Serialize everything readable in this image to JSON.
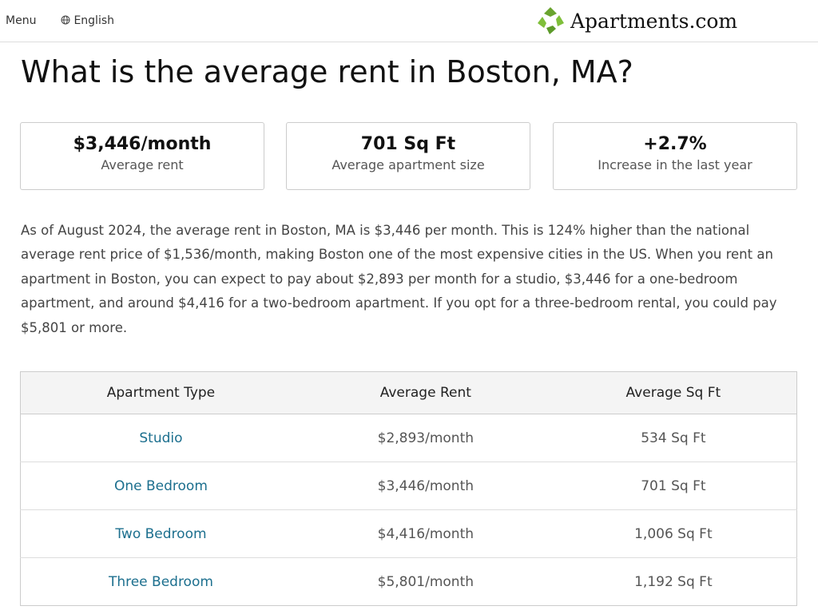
{
  "header": {
    "menu": "Menu",
    "language": "English",
    "logo": "Apartments.com"
  },
  "title": "What is the average rent in Boston, MA?",
  "stats": [
    {
      "value": "$3,446/month",
      "label": "Average rent"
    },
    {
      "value": "701 Sq Ft",
      "label": "Average apartment size"
    },
    {
      "value": "+2.7%",
      "label": "Increase in the last year"
    }
  ],
  "description": "As of August 2024, the average rent in Boston, MA is $3,446 per month. This is 124% higher than the national average rent price of $1,536/month, making Boston one of the most expensive cities in the US. When you rent an apartment in Boston, you can expect to pay about $2,893 per month for a studio, $3,446 for a one-bedroom apartment, and around $4,416 for a two-bedroom apartment. If you opt for a three-bedroom rental, you could pay $5,801 or more.",
  "table": {
    "headers": [
      "Apartment Type",
      "Average Rent",
      "Average Sq Ft"
    ],
    "rows": [
      [
        "Studio",
        "$2,893/month",
        "534 Sq Ft"
      ],
      [
        "One Bedroom",
        "$3,446/month",
        "701 Sq Ft"
      ],
      [
        "Two Bedroom",
        "$4,416/month",
        "1,006 Sq Ft"
      ],
      [
        "Three Bedroom",
        "$5,801/month",
        "1,192 Sq Ft"
      ]
    ]
  }
}
